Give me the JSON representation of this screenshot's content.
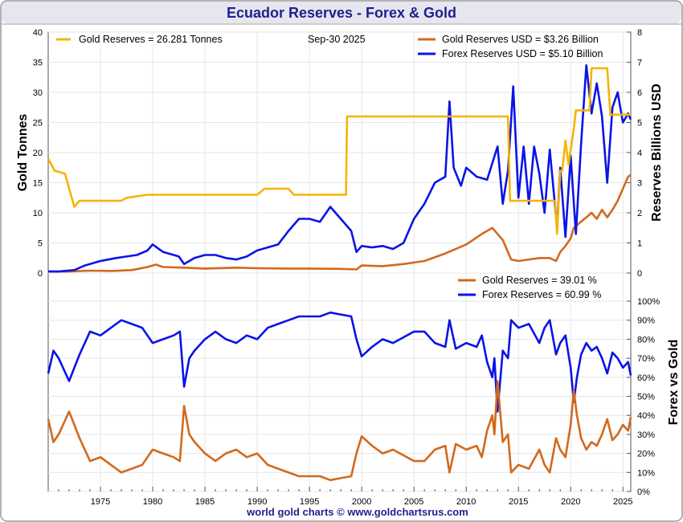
{
  "header": {
    "title": "Ecuador Reserves - Forex & Gold"
  },
  "footer": {
    "text": "world gold charts © www.goldchartsrus.com"
  },
  "colors": {
    "gold_tonnes": "#f5b400",
    "gold_usd": "#d2691e",
    "forex": "#0a14e6",
    "title": "#1f1f8f",
    "grid": "#e6e6e6"
  },
  "chart_data": [
    {
      "type": "line",
      "panel": "top",
      "xlim": [
        1970,
        2025.75
      ],
      "x_ticks": [
        1975,
        1980,
        1985,
        1990,
        1995,
        2000,
        2005,
        2010,
        2015,
        2020,
        2025
      ],
      "y_left": {
        "label": "Gold Tonnes",
        "lim": [
          0,
          40
        ],
        "ticks": [
          0,
          5,
          10,
          15,
          20,
          25,
          30,
          35,
          40
        ]
      },
      "y_right": {
        "label": "Reserves Billions USD",
        "lim": [
          0,
          8
        ],
        "ticks": [
          0,
          1,
          2,
          3,
          4,
          5,
          6,
          7,
          8
        ]
      },
      "date_label": "Sep-30  2025",
      "grid": true,
      "legend": [
        {
          "series": "gold_tonnes",
          "name": "Gold Reserves",
          "text": "Gold Reserves  = 26.281 Tonnes",
          "position": "top-left"
        },
        {
          "series": "gold_usd",
          "name": "Gold Reserves USD",
          "text": "Gold Reserves USD    = $3.26 Billion",
          "position": "top-right"
        },
        {
          "series": "forex",
          "name": "Forex Reserves USD",
          "text": "Forex Reserves USD  = $5.10 Billion",
          "position": "top-right"
        }
      ],
      "series": [
        {
          "name": "Gold Reserves",
          "key": "gold_tonnes",
          "unit": "Tonnes",
          "axis": "left",
          "x": [
            1970,
            1970.6,
            1971.6,
            1972.5,
            1973.0,
            1973.5,
            1977.0,
            1977.5,
            1979.5,
            1980.0,
            1990.0,
            1990.7,
            1993.0,
            1993.5,
            1998.5,
            1998.6,
            1999.6,
            2014.0,
            2014.2,
            2018.5,
            2018.7,
            2019.0,
            2019.2,
            2019.5,
            2019.8,
            2020.3,
            2020.5,
            2021.8,
            2022.0,
            2023.5,
            2023.8,
            2025.5,
            2025.75
          ],
          "y": [
            19,
            17,
            16.5,
            11,
            12,
            12,
            12,
            12.5,
            13,
            13,
            13,
            14,
            14,
            13,
            13,
            26,
            26,
            26,
            12,
            12,
            6.5,
            17,
            17,
            22,
            18,
            24,
            27,
            27,
            34,
            34,
            26.3,
            26.3,
            26.281
          ]
        },
        {
          "name": "Gold Reserves USD",
          "key": "gold_usd",
          "unit": "Billion USD",
          "axis": "right",
          "x": [
            1970,
            1972,
            1974,
            1976,
            1978,
            1979.5,
            1980.3,
            1981,
            1983,
            1985,
            1988,
            1990,
            1993,
            1995,
            1998,
            1999.5,
            2000,
            2002,
            2004,
            2006,
            2008,
            2010,
            2011.5,
            2012.5,
            2013,
            2013.5,
            2014.3,
            2015,
            2016,
            2017,
            2018,
            2018.6,
            2019,
            2019.5,
            2020,
            2020.3,
            2020.8,
            2021.5,
            2022,
            2022.5,
            2023,
            2023.5,
            2024,
            2024.5,
            2025,
            2025.5,
            2025.75
          ],
          "y": [
            0.05,
            0.05,
            0.08,
            0.07,
            0.1,
            0.2,
            0.28,
            0.2,
            0.18,
            0.15,
            0.18,
            0.16,
            0.15,
            0.15,
            0.14,
            0.12,
            0.25,
            0.23,
            0.3,
            0.4,
            0.65,
            0.95,
            1.3,
            1.5,
            1.3,
            1.1,
            0.45,
            0.4,
            0.45,
            0.5,
            0.5,
            0.4,
            0.7,
            0.9,
            1.15,
            1.5,
            1.65,
            1.85,
            2.0,
            1.8,
            2.1,
            1.85,
            2.1,
            2.4,
            2.8,
            3.2,
            3.26
          ]
        },
        {
          "name": "Forex Reserves USD",
          "key": "forex",
          "unit": "Billion USD",
          "axis": "right",
          "x": [
            1970,
            1971,
            1972.5,
            1973.5,
            1974,
            1975,
            1976.5,
            1977.5,
            1978.5,
            1979.5,
            1980,
            1981,
            1982.5,
            1983,
            1984,
            1985,
            1986,
            1987,
            1988,
            1989,
            1990,
            1991,
            1992,
            1993,
            1994,
            1995,
            1996,
            1997,
            1998,
            1999,
            1999.5,
            2000,
            2001,
            2002,
            2003,
            2004,
            2005,
            2006,
            2007,
            2008,
            2008.4,
            2008.8,
            2009.5,
            2010,
            2011,
            2012,
            2013,
            2013.5,
            2014,
            2014.5,
            2015,
            2015.5,
            2016,
            2016.5,
            2017,
            2017.5,
            2018,
            2018.7,
            2019,
            2019.5,
            2020,
            2020.5,
            2021,
            2021.5,
            2022,
            2022.5,
            2023,
            2023.5,
            2024,
            2024.5,
            2025,
            2025.5,
            2025.75
          ],
          "y": [
            0.05,
            0.05,
            0.1,
            0.25,
            0.3,
            0.4,
            0.5,
            0.55,
            0.6,
            0.75,
            0.95,
            0.7,
            0.55,
            0.3,
            0.5,
            0.6,
            0.6,
            0.5,
            0.45,
            0.55,
            0.75,
            0.85,
            0.95,
            1.4,
            1.8,
            1.8,
            1.7,
            2.2,
            1.8,
            1.4,
            0.7,
            0.9,
            0.85,
            0.9,
            0.8,
            1.0,
            1.8,
            2.3,
            3.0,
            3.2,
            5.7,
            3.5,
            2.9,
            3.5,
            3.2,
            3.1,
            4.2,
            2.3,
            3.4,
            6.2,
            2.5,
            4.2,
            2.3,
            4.2,
            3.3,
            2.0,
            4.1,
            1.5,
            3.5,
            1.2,
            3.9,
            1.3,
            4.3,
            6.9,
            5.3,
            6.3,
            5.2,
            3.0,
            5.5,
            6.0,
            5.0,
            5.3,
            5.1
          ]
        }
      ]
    },
    {
      "type": "line",
      "panel": "bottom",
      "xlim": [
        1970,
        2025.75
      ],
      "x_ticks": [
        1975,
        1980,
        1985,
        1990,
        1995,
        2000,
        2005,
        2010,
        2015,
        2020,
        2025
      ],
      "y_right": {
        "label": "Forex vs Gold",
        "lim": [
          0,
          100
        ],
        "ticks": [
          0,
          10,
          20,
          30,
          40,
          50,
          60,
          70,
          80,
          90,
          100
        ],
        "tick_suffix": "%"
      },
      "grid": true,
      "legend": [
        {
          "series": "gold_pct",
          "name": "Gold Reserves",
          "text": "Gold Reserves      = 39.01 %",
          "position": "top-right"
        },
        {
          "series": "forex_pct",
          "name": "Forex Reserves",
          "text": "Forex Reserves    = 60.99 %",
          "position": "top-right"
        }
      ],
      "series": [
        {
          "name": "Gold Reserves",
          "key": "gold_pct",
          "unit": "%",
          "x": [
            1970,
            1970.5,
            1971,
            1972,
            1973,
            1974,
            1975,
            1976,
            1977,
            1978,
            1979,
            1980,
            1981,
            1982,
            1982.6,
            1983,
            1983.5,
            1984,
            1985,
            1986,
            1987,
            1988,
            1989,
            1990,
            1991,
            1992,
            1993,
            1994,
            1995,
            1996,
            1997,
            1998,
            1999,
            1999.5,
            2000,
            2001,
            2002,
            2003,
            2004,
            2005,
            2006,
            2007,
            2008,
            2008.4,
            2009,
            2010,
            2011,
            2011.5,
            2012,
            2012.5,
            2012.7,
            2013,
            2013.5,
            2014,
            2014.3,
            2015,
            2016,
            2017,
            2017.5,
            2018,
            2018.6,
            2019,
            2019.5,
            2020,
            2020.3,
            2020.6,
            2021,
            2021.5,
            2022,
            2022.5,
            2023,
            2023.5,
            2024,
            2024.5,
            2025,
            2025.5,
            2025.75
          ],
          "y": [
            38,
            26,
            30,
            42,
            28,
            16,
            18,
            14,
            10,
            12,
            14,
            22,
            20,
            18,
            16,
            45,
            30,
            26,
            20,
            16,
            20,
            22,
            18,
            20,
            14,
            12,
            10,
            8,
            8,
            8,
            6,
            7,
            8,
            20,
            29,
            24,
            20,
            22,
            19,
            16,
            16,
            22,
            24,
            10,
            25,
            22,
            24,
            18,
            32,
            40,
            30,
            58,
            26,
            30,
            10,
            14,
            12,
            22,
            14,
            10,
            28,
            22,
            18,
            35,
            53,
            40,
            28,
            22,
            26,
            24,
            30,
            38,
            27,
            30,
            35,
            32,
            39.01
          ]
        },
        {
          "name": "Forex Reserves",
          "key": "forex_pct",
          "unit": "%",
          "x": [
            1970,
            1970.5,
            1971,
            1972,
            1973,
            1974,
            1975,
            1976,
            1977,
            1978,
            1979,
            1980,
            1981,
            1982,
            1982.6,
            1983,
            1983.5,
            1984,
            1985,
            1986,
            1987,
            1988,
            1989,
            1990,
            1991,
            1992,
            1993,
            1994,
            1995,
            1996,
            1997,
            1998,
            1999,
            1999.5,
            2000,
            2001,
            2002,
            2003,
            2004,
            2005,
            2006,
            2007,
            2008,
            2008.4,
            2009,
            2010,
            2011,
            2011.5,
            2012,
            2012.5,
            2012.7,
            2013,
            2013.5,
            2014,
            2014.3,
            2015,
            2016,
            2017,
            2017.5,
            2018,
            2018.6,
            2019,
            2019.5,
            2020,
            2020.3,
            2020.6,
            2021,
            2021.5,
            2022,
            2022.5,
            2023,
            2023.5,
            2024,
            2024.5,
            2025,
            2025.5,
            2025.75
          ],
          "y": [
            62,
            74,
            70,
            58,
            72,
            84,
            82,
            86,
            90,
            88,
            86,
            78,
            80,
            82,
            84,
            55,
            70,
            74,
            80,
            84,
            80,
            78,
            82,
            80,
            86,
            88,
            90,
            92,
            92,
            92,
            94,
            93,
            92,
            80,
            71,
            76,
            80,
            78,
            81,
            84,
            84,
            78,
            76,
            90,
            75,
            78,
            76,
            82,
            68,
            60,
            70,
            42,
            74,
            70,
            90,
            86,
            88,
            78,
            86,
            90,
            72,
            78,
            82,
            65,
            47,
            60,
            72,
            78,
            74,
            76,
            70,
            62,
            73,
            70,
            65,
            68,
            60.99
          ]
        }
      ]
    }
  ]
}
